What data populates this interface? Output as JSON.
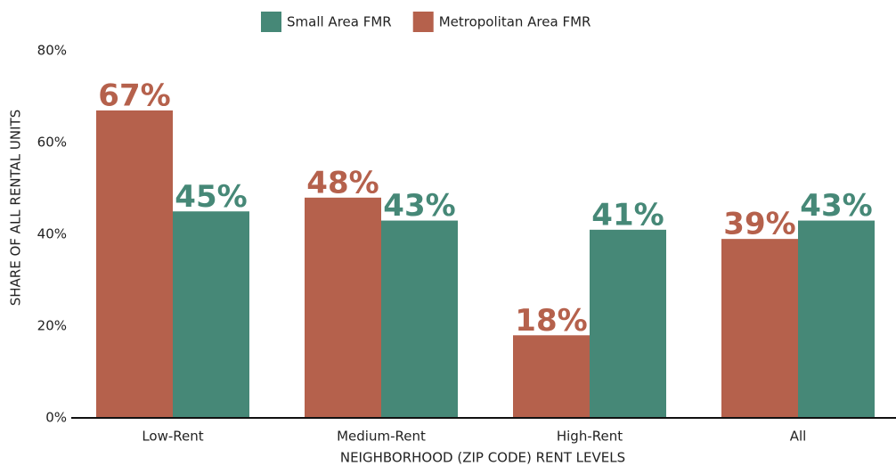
{
  "chart_data": {
    "type": "bar",
    "categories": [
      "Low-Rent",
      "Medium-Rent",
      "High-Rent",
      "All"
    ],
    "series": [
      {
        "name": "Metropolitan Area FMR",
        "color": "#b5614c",
        "values": [
          67,
          48,
          18,
          39
        ],
        "value_labels": [
          "67%",
          "48%",
          "18%",
          "39%"
        ]
      },
      {
        "name": "Small Area FMR",
        "color": "#468877",
        "values": [
          45,
          43,
          41,
          43
        ],
        "value_labels": [
          "45%",
          "43%",
          "41%",
          "43%"
        ]
      }
    ],
    "ylim": [
      0,
      80
    ],
    "yticks": [
      {
        "value": 0,
        "label": "0%"
      },
      {
        "value": 20,
        "label": "20%"
      },
      {
        "value": 40,
        "label": "40%"
      },
      {
        "value": 60,
        "label": "60%"
      },
      {
        "value": 80,
        "label": "80%"
      }
    ],
    "ylabel": "SHARE OF ALL RENTAL UNITS",
    "xlabel": "NEIGHBORHOOD (ZIP CODE) RENT LEVELS",
    "grid": false
  }
}
